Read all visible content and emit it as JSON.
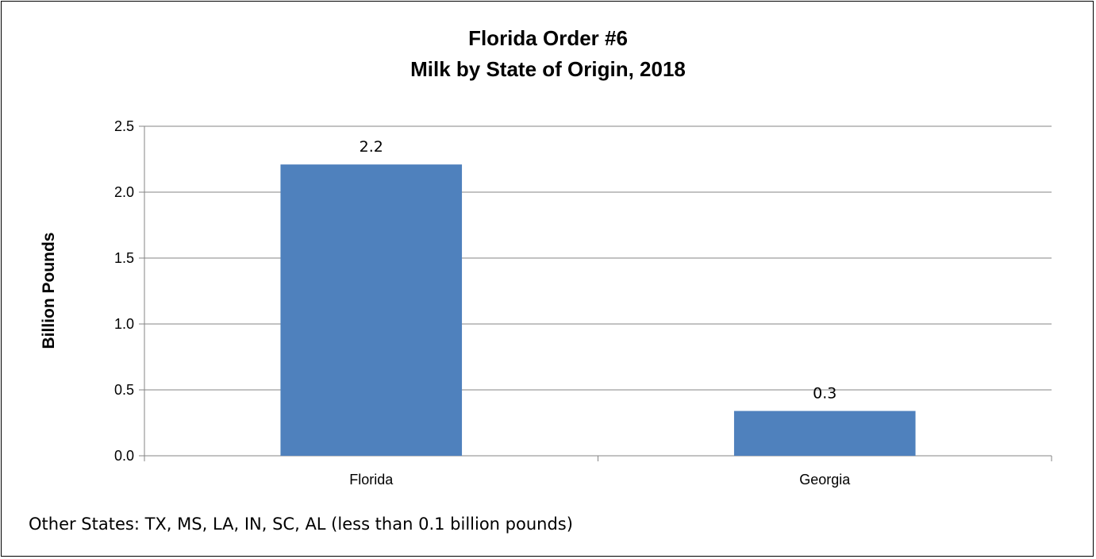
{
  "chart_data": {
    "type": "bar",
    "title": "Florida Order #6",
    "subtitle": "Milk by State of Origin, 2018",
    "xlabel": "",
    "ylabel": "Billion Pounds",
    "categories": [
      "Florida",
      "Georgia"
    ],
    "values": [
      2.21,
      0.34
    ],
    "data_labels": [
      "2.2",
      "0.3"
    ],
    "ylim": [
      0,
      2.5
    ],
    "yticks": [
      "0.0",
      "0.5",
      "1.0",
      "1.5",
      "2.0",
      "2.5"
    ],
    "grid": true,
    "legend": "none",
    "bar_color": "#4F81BD"
  },
  "footnote": "Other States: TX, MS, LA, IN, SC, AL  (less than 0.1 billion pounds)"
}
